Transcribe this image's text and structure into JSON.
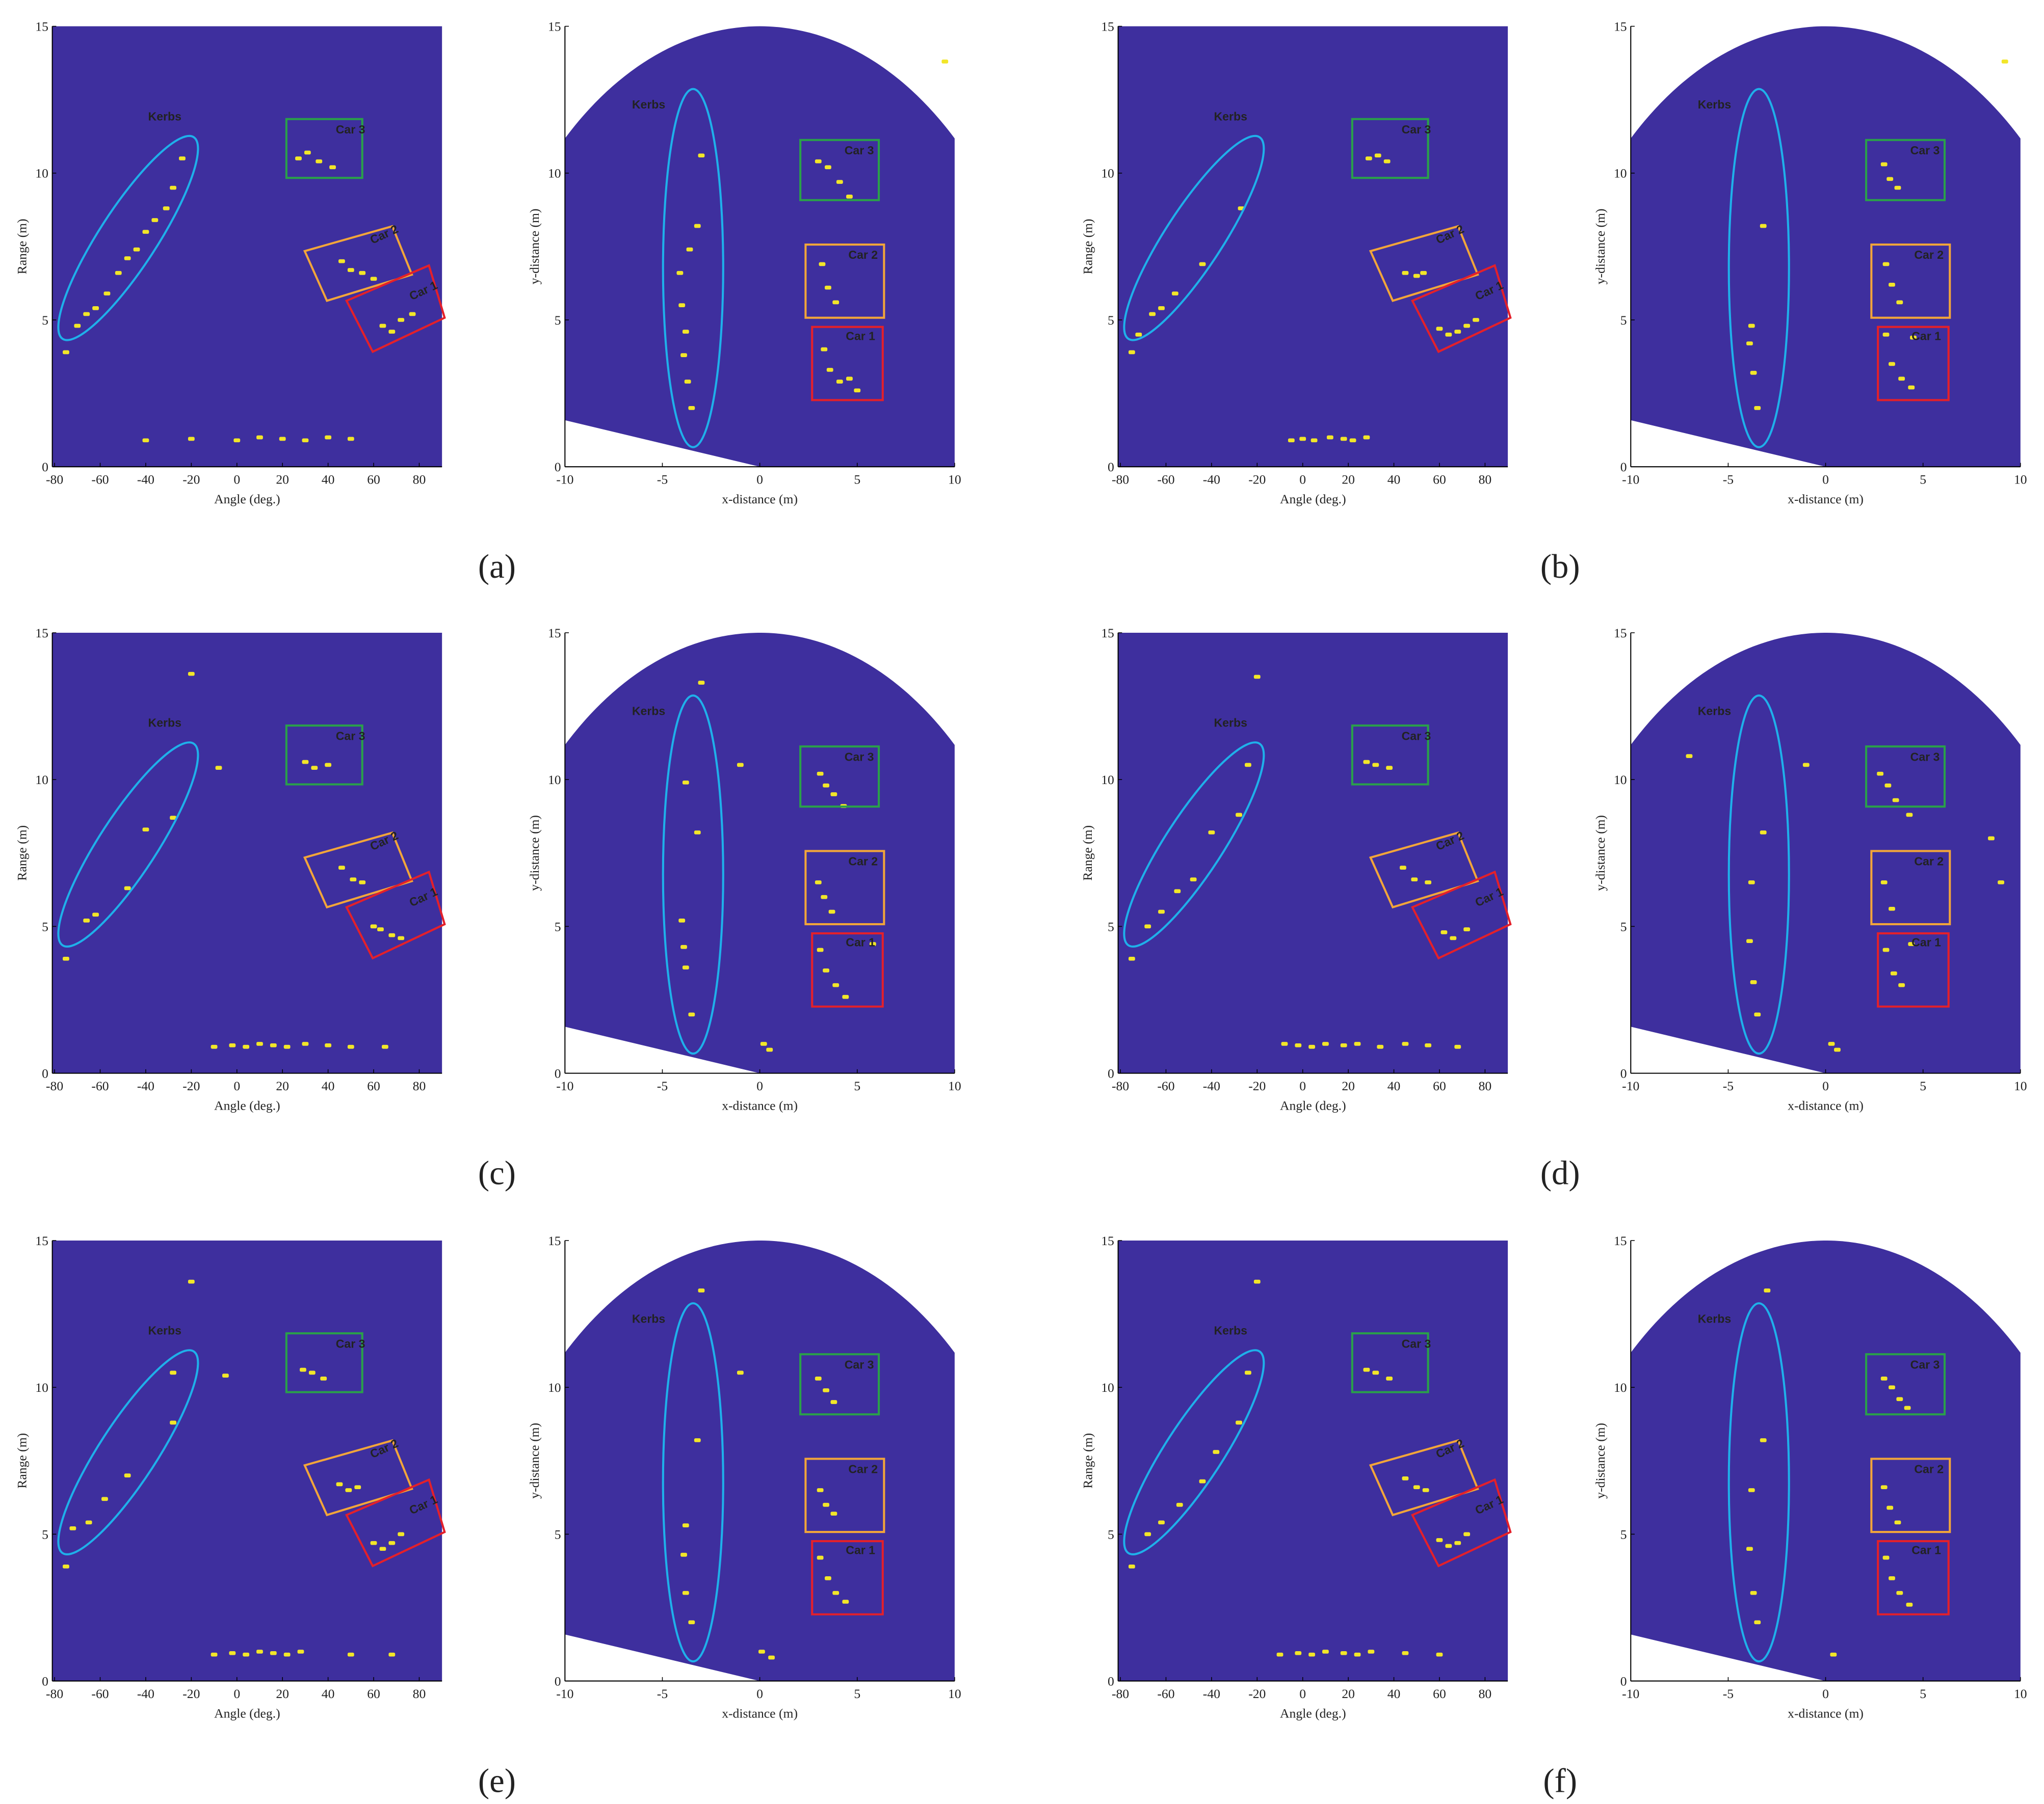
{
  "chart_data": [
    {
      "type": "scatter",
      "region": "rectangle",
      "background": "#3e2f9e",
      "color": "#f2e629",
      "xlim": [
        -81,
        90
      ],
      "ylim": [
        0,
        15
      ],
      "xticks": [
        -80,
        -60,
        -40,
        -20,
        0,
        20,
        40,
        60,
        80
      ],
      "yticks": [
        0,
        5,
        10,
        15
      ],
      "x_label": "Angle (deg.)",
      "y_label": "Range (m)",
      "annotations": {
        "kerbs": "Kerbs",
        "car3": "Car 3",
        "car2": "Car 2",
        "car1": "Car 1"
      },
      "x": [
        -75,
        -70,
        -66,
        -62,
        -57,
        -52,
        -48,
        -44,
        -40,
        -36,
        -31,
        -28,
        -24,
        27,
        31,
        36,
        42,
        46,
        50,
        55,
        60,
        64,
        68,
        72,
        77,
        -40,
        -20,
        0,
        10,
        20,
        30,
        40,
        50
      ],
      "y": [
        3.9,
        4.8,
        5.2,
        5.4,
        5.9,
        6.6,
        7.1,
        7.4,
        8.0,
        8.4,
        8.8,
        9.5,
        10.5,
        10.5,
        10.7,
        10.4,
        10.2,
        7.0,
        6.7,
        6.6,
        6.4,
        4.8,
        4.6,
        5.0,
        5.2,
        0.9,
        0.95,
        0.9,
        1.0,
        0.95,
        0.9,
        1.0,
        0.95
      ]
    },
    {
      "type": "scatter",
      "region": "sector",
      "background": "#3e2f9e",
      "color": "#f2e629",
      "xlim": [
        -10,
        10
      ],
      "ylim": [
        0,
        15
      ],
      "xticks": [
        -10,
        -5,
        0,
        5,
        10
      ],
      "yticks": [
        0,
        5,
        10,
        15
      ],
      "x_label": "x-distance (m)",
      "y_label": "y-distance (m)",
      "annotations": {
        "kerbs": "Kerbs",
        "car3": "Car 3",
        "car2": "Car 2",
        "car1": "Car 1"
      },
      "x": [
        -3.5,
        -3.7,
        -3.9,
        -3.8,
        -4.0,
        -4.1,
        -3.6,
        -3.2,
        -3.0,
        3.0,
        3.5,
        4.1,
        4.6,
        3.2,
        3.5,
        3.9,
        3.3,
        3.6,
        4.1,
        4.6,
        5.0,
        9.5
      ],
      "y": [
        2.0,
        2.9,
        3.8,
        4.6,
        5.5,
        6.6,
        7.4,
        8.2,
        10.6,
        10.4,
        10.2,
        9.7,
        9.2,
        6.9,
        6.1,
        5.6,
        4.0,
        3.3,
        2.9,
        3.0,
        2.6,
        13.8
      ]
    },
    {
      "type": "scatter",
      "region": "rectangle",
      "background": "#3e2f9e",
      "color": "#f2e629",
      "xlim": [
        -81,
        90
      ],
      "ylim": [
        0,
        15
      ],
      "xticks": [
        -80,
        -60,
        -40,
        -20,
        0,
        20,
        40,
        60,
        80
      ],
      "yticks": [
        0,
        5,
        10,
        15
      ],
      "x_label": "Angle (deg.)",
      "y_label": "Range (m)",
      "annotations": {
        "kerbs": "Kerbs",
        "car3": "Car 3",
        "car2": "Car 2",
        "car1": "Car 1"
      },
      "x": [
        -75,
        -72,
        -66,
        -62,
        -56,
        -44,
        -27,
        29,
        33,
        37,
        45,
        50,
        53,
        60,
        64,
        68,
        72,
        76,
        -5,
        0,
        5,
        12,
        18,
        22,
        28
      ],
      "y": [
        3.9,
        4.5,
        5.2,
        5.4,
        5.9,
        6.9,
        8.8,
        10.5,
        10.6,
        10.4,
        6.6,
        6.5,
        6.6,
        4.7,
        4.5,
        4.6,
        4.8,
        5.0,
        0.9,
        0.95,
        0.9,
        1.0,
        0.95,
        0.9,
        1.0
      ]
    },
    {
      "type": "scatter",
      "region": "sector",
      "background": "#3e2f9e",
      "color": "#f2e629",
      "xlim": [
        -10,
        10
      ],
      "ylim": [
        0,
        15
      ],
      "xticks": [
        -10,
        -5,
        0,
        5,
        10
      ],
      "yticks": [
        0,
        5,
        10,
        15
      ],
      "x_label": "x-distance (m)",
      "y_label": "y-distance (m)",
      "annotations": {
        "kerbs": "Kerbs",
        "car3": "Car 3",
        "car2": "Car 2",
        "car1": "Car 1"
      },
      "x": [
        -3.5,
        -3.7,
        -3.9,
        -3.8,
        -3.2,
        3.0,
        3.3,
        3.7,
        3.1,
        3.4,
        3.8,
        3.1,
        3.4,
        3.9,
        4.4,
        4.5,
        9.2
      ],
      "y": [
        2.0,
        3.2,
        4.2,
        4.8,
        8.2,
        10.3,
        9.8,
        9.5,
        6.9,
        6.2,
        5.6,
        4.5,
        3.5,
        3.0,
        2.7,
        4.4,
        13.8
      ]
    },
    {
      "type": "scatter",
      "region": "rectangle",
      "background": "#3e2f9e",
      "color": "#f2e629",
      "xlim": [
        -81,
        90
      ],
      "ylim": [
        0,
        15
      ],
      "xticks": [
        -80,
        -60,
        -40,
        -20,
        0,
        20,
        40,
        60,
        80
      ],
      "yticks": [
        0,
        5,
        10,
        15
      ],
      "x_label": "Angle (deg.)",
      "y_label": "Range (m)",
      "annotations": {
        "kerbs": "Kerbs",
        "car3": "Car 3",
        "car2": "Car 2",
        "car1": "Car 1"
      },
      "x": [
        -75,
        -66,
        -62,
        -48,
        -40,
        -28,
        -20,
        -8,
        30,
        34,
        40,
        46,
        51,
        55,
        60,
        63,
        68,
        72,
        -10,
        -2,
        4,
        10,
        16,
        22,
        30,
        40,
        50,
        65
      ],
      "y": [
        3.9,
        5.2,
        5.4,
        6.3,
        8.3,
        8.7,
        13.6,
        10.4,
        10.6,
        10.4,
        10.5,
        7.0,
        6.6,
        6.5,
        5.0,
        4.9,
        4.7,
        4.6,
        0.9,
        0.95,
        0.9,
        1.0,
        0.95,
        0.9,
        1.0,
        0.95,
        0.9,
        0.9
      ]
    },
    {
      "type": "scatter",
      "region": "sector",
      "background": "#3e2f9e",
      "color": "#f2e629",
      "xlim": [
        -10,
        10
      ],
      "ylim": [
        0,
        15
      ],
      "xticks": [
        -10,
        -5,
        0,
        5,
        10
      ],
      "yticks": [
        0,
        5,
        10,
        15
      ],
      "x_label": "x-distance (m)",
      "y_label": "y-distance (m)",
      "annotations": {
        "kerbs": "Kerbs",
        "car3": "Car 3",
        "car2": "Car 2",
        "car1": "Car 1"
      },
      "x": [
        -3.5,
        -3.8,
        -3.9,
        -4.0,
        -3.8,
        -3.2,
        -3.0,
        -1.0,
        3.1,
        3.4,
        3.8,
        4.3,
        3.0,
        3.3,
        3.7,
        3.1,
        3.4,
        3.9,
        4.4,
        0.2,
        0.5,
        5.8
      ],
      "y": [
        2.0,
        3.6,
        4.3,
        5.2,
        9.9,
        8.2,
        13.3,
        10.5,
        10.2,
        9.8,
        9.5,
        9.1,
        6.5,
        6.0,
        5.5,
        4.2,
        3.5,
        3.0,
        2.6,
        1.0,
        0.8,
        4.4
      ]
    },
    {
      "type": "scatter",
      "region": "rectangle",
      "background": "#3e2f9e",
      "color": "#f2e629",
      "xlim": [
        -81,
        90
      ],
      "ylim": [
        0,
        15
      ],
      "xticks": [
        -80,
        -60,
        -40,
        -20,
        0,
        20,
        40,
        60,
        80
      ],
      "yticks": [
        0,
        5,
        10,
        15
      ],
      "x_label": "Angle (deg.)",
      "y_label": "Range (m)",
      "annotations": {
        "kerbs": "Kerbs",
        "car3": "Car 3",
        "car2": "Car 2",
        "car1": "Car 1"
      },
      "x": [
        -75,
        -68,
        -62,
        -55,
        -48,
        -40,
        -28,
        -20,
        -24,
        28,
        32,
        38,
        44,
        49,
        55,
        62,
        66,
        72,
        -8,
        -2,
        4,
        10,
        18,
        24,
        34,
        45,
        55,
        68
      ],
      "y": [
        3.9,
        5.0,
        5.5,
        6.2,
        6.6,
        8.2,
        8.8,
        13.5,
        10.5,
        10.6,
        10.5,
        10.4,
        7.0,
        6.6,
        6.5,
        4.8,
        4.6,
        4.9,
        1.0,
        0.95,
        0.9,
        1.0,
        0.95,
        1.0,
        0.9,
        1.0,
        0.95,
        0.9
      ]
    },
    {
      "type": "scatter",
      "region": "sector",
      "background": "#3e2f9e",
      "color": "#f2e629",
      "xlim": [
        -10,
        10
      ],
      "ylim": [
        0,
        15
      ],
      "xticks": [
        -10,
        -5,
        0,
        5,
        10
      ],
      "yticks": [
        0,
        5,
        10,
        15
      ],
      "x_label": "x-distance (m)",
      "y_label": "y-distance (m)",
      "annotations": {
        "kerbs": "Kerbs",
        "car3": "Car 3",
        "car2": "Car 2",
        "car1": "Car 1"
      },
      "x": [
        -7.0,
        -3.5,
        -3.7,
        -3.9,
        -3.8,
        -3.2,
        -1.0,
        2.8,
        3.2,
        3.6,
        4.3,
        3.0,
        3.4,
        3.1,
        3.5,
        3.9,
        4.4,
        0.3,
        0.6,
        8.5,
        9.0
      ],
      "y": [
        10.8,
        2.0,
        3.1,
        4.5,
        6.5,
        8.2,
        10.5,
        10.2,
        9.8,
        9.3,
        8.8,
        6.5,
        5.6,
        4.2,
        3.4,
        3.0,
        4.4,
        1.0,
        0.8,
        8.0,
        6.5
      ]
    },
    {
      "type": "scatter",
      "region": "rectangle",
      "background": "#3e2f9e",
      "color": "#f2e629",
      "xlim": [
        -81,
        90
      ],
      "ylim": [
        0,
        15
      ],
      "xticks": [
        -80,
        -60,
        -40,
        -20,
        0,
        20,
        40,
        60,
        80
      ],
      "yticks": [
        0,
        5,
        10,
        15
      ],
      "x_label": "Angle (deg.)",
      "y_label": "Range (m)",
      "annotations": {
        "kerbs": "Kerbs",
        "car3": "Car 3",
        "car2": "Car 2",
        "car1": "Car 1"
      },
      "x": [
        -75,
        -72,
        -65,
        -58,
        -48,
        -28,
        -20,
        -28,
        -5,
        29,
        33,
        38,
        45,
        49,
        53,
        60,
        64,
        68,
        72,
        -10,
        -2,
        4,
        10,
        16,
        22,
        28,
        50,
        68
      ],
      "y": [
        3.9,
        5.2,
        5.4,
        6.2,
        7.0,
        8.8,
        13.6,
        10.5,
        10.4,
        10.6,
        10.5,
        10.3,
        6.7,
        6.5,
        6.6,
        4.7,
        4.5,
        4.7,
        5.0,
        0.9,
        0.95,
        0.9,
        1.0,
        0.95,
        0.9,
        1.0,
        0.9,
        0.9
      ]
    },
    {
      "type": "scatter",
      "region": "sector",
      "background": "#3e2f9e",
      "color": "#f2e629",
      "xlim": [
        -10,
        10
      ],
      "ylim": [
        0,
        15
      ],
      "xticks": [
        -10,
        -5,
        0,
        5,
        10
      ],
      "yticks": [
        0,
        5,
        10,
        15
      ],
      "x_label": "x-distance (m)",
      "y_label": "y-distance (m)",
      "annotations": {
        "kerbs": "Kerbs",
        "car3": "Car 3",
        "car2": "Car 2",
        "car1": "Car 1"
      },
      "x": [
        -3.5,
        -3.8,
        -3.9,
        -3.8,
        -3.2,
        -3.0,
        -1.0,
        3.0,
        3.4,
        3.8,
        3.1,
        3.4,
        3.8,
        3.1,
        3.5,
        3.9,
        4.4,
        0.1,
        0.6
      ],
      "y": [
        2.0,
        3.0,
        4.3,
        5.3,
        8.2,
        13.3,
        10.5,
        10.3,
        9.9,
        9.5,
        6.5,
        6.0,
        5.7,
        4.2,
        3.5,
        3.0,
        2.7,
        1.0,
        0.8
      ]
    },
    {
      "type": "scatter",
      "region": "rectangle",
      "background": "#3e2f9e",
      "color": "#f2e629",
      "xlim": [
        -81,
        90
      ],
      "ylim": [
        0,
        15
      ],
      "xticks": [
        -80,
        -60,
        -40,
        -20,
        0,
        20,
        40,
        60,
        80
      ],
      "yticks": [
        0,
        5,
        10,
        15
      ],
      "x_label": "Angle (deg.)",
      "y_label": "Range (m)",
      "annotations": {
        "kerbs": "Kerbs",
        "car3": "Car 3",
        "car2": "Car 2",
        "car1": "Car 1"
      },
      "x": [
        -75,
        -68,
        -62,
        -54,
        -44,
        -38,
        -28,
        -20,
        -24,
        28,
        32,
        38,
        45,
        50,
        54,
        60,
        64,
        68,
        72,
        -10,
        -2,
        4,
        10,
        18,
        24,
        30,
        45,
        60
      ],
      "y": [
        3.9,
        5.0,
        5.4,
        6.0,
        6.8,
        7.8,
        8.8,
        13.6,
        10.5,
        10.6,
        10.5,
        10.3,
        6.9,
        6.6,
        6.5,
        4.8,
        4.6,
        4.7,
        5.0,
        0.9,
        0.95,
        0.9,
        1.0,
        0.95,
        0.9,
        1.0,
        0.95,
        0.9
      ]
    },
    {
      "type": "scatter",
      "region": "sector",
      "background": "#3e2f9e",
      "color": "#f2e629",
      "xlim": [
        -10,
        10
      ],
      "ylim": [
        0,
        15
      ],
      "xticks": [
        -10,
        -5,
        0,
        5,
        10
      ],
      "yticks": [
        0,
        5,
        10,
        15
      ],
      "x_label": "x-distance (m)",
      "y_label": "y-distance (m)",
      "annotations": {
        "kerbs": "Kerbs",
        "car3": "Car 3",
        "car2": "Car 2",
        "car1": "Car 1"
      },
      "x": [
        -3.5,
        -3.7,
        -3.9,
        -3.8,
        -3.2,
        -3.0,
        3.0,
        3.4,
        3.8,
        4.2,
        3.0,
        3.3,
        3.7,
        3.1,
        3.4,
        3.8,
        4.3,
        0.4
      ],
      "y": [
        2.0,
        3.0,
        4.5,
        6.5,
        8.2,
        13.3,
        10.3,
        10.0,
        9.6,
        9.3,
        6.6,
        5.9,
        5.4,
        4.2,
        3.5,
        3.0,
        2.6,
        0.9
      ]
    }
  ],
  "subfigure_labels": [
    "(a)",
    "(b)",
    "(c)",
    "(d)",
    "(e)",
    "(f)"
  ]
}
